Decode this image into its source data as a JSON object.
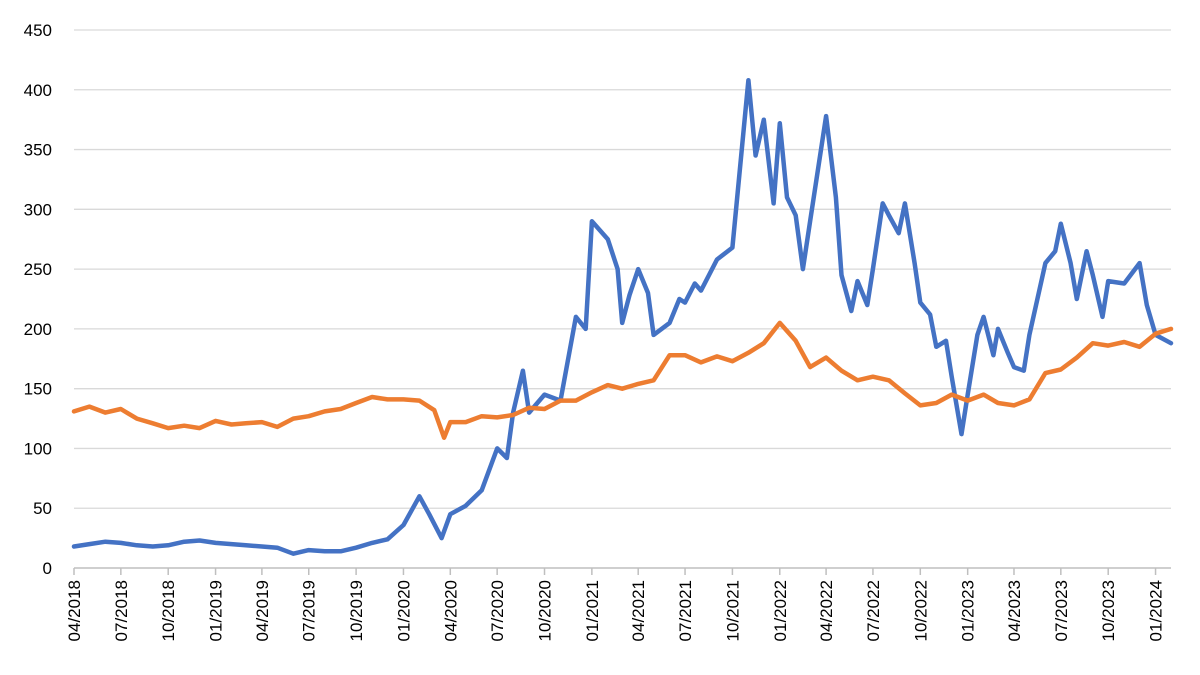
{
  "chart_data": {
    "type": "line",
    "title": "",
    "xlabel": "",
    "ylabel": "",
    "ylim": [
      0,
      450
    ],
    "yticks": [
      "0",
      "50",
      "100",
      "150",
      "200",
      "250",
      "300",
      "350",
      "400",
      "450"
    ],
    "xlim": [
      "2018-04-01",
      "2024-01-31"
    ],
    "xticks": [
      {
        "date": "2018-04-01",
        "label": "04/2018"
      },
      {
        "date": "2018-07-01",
        "label": "07/2018"
      },
      {
        "date": "2018-10-01",
        "label": "10/2018"
      },
      {
        "date": "2019-01-01",
        "label": "01/2019"
      },
      {
        "date": "2019-04-01",
        "label": "04/2019"
      },
      {
        "date": "2019-07-01",
        "label": "07/2019"
      },
      {
        "date": "2019-10-01",
        "label": "10/2019"
      },
      {
        "date": "2020-01-01",
        "label": "01/2020"
      },
      {
        "date": "2020-04-01",
        "label": "04/2020"
      },
      {
        "date": "2020-07-01",
        "label": "07/2020"
      },
      {
        "date": "2020-10-01",
        "label": "10/2020"
      },
      {
        "date": "2021-01-01",
        "label": "01/2021"
      },
      {
        "date": "2021-04-01",
        "label": "04/2021"
      },
      {
        "date": "2021-07-01",
        "label": "07/2021"
      },
      {
        "date": "2021-10-01",
        "label": "10/2021"
      },
      {
        "date": "2022-01-01",
        "label": "01/2022"
      },
      {
        "date": "2022-04-01",
        "label": "04/2022"
      },
      {
        "date": "2022-07-01",
        "label": "07/2022"
      },
      {
        "date": "2022-10-01",
        "label": "10/2022"
      },
      {
        "date": "2023-01-01",
        "label": "01/2023"
      },
      {
        "date": "2023-04-01",
        "label": "04/2023"
      },
      {
        "date": "2023-07-01",
        "label": "07/2023"
      },
      {
        "date": "2023-10-01",
        "label": "10/2023"
      },
      {
        "date": "2024-01-01",
        "label": "01/2024"
      }
    ],
    "grid": "horizontal",
    "legend": "none",
    "series": [
      {
        "color": "#4472C4",
        "points": [
          [
            "2018-04-01",
            18
          ],
          [
            "2018-05-01",
            20
          ],
          [
            "2018-06-01",
            22
          ],
          [
            "2018-07-01",
            21
          ],
          [
            "2018-08-01",
            19
          ],
          [
            "2018-09-01",
            18
          ],
          [
            "2018-10-01",
            19
          ],
          [
            "2018-11-01",
            22
          ],
          [
            "2018-12-01",
            23
          ],
          [
            "2019-01-01",
            21
          ],
          [
            "2019-02-01",
            20
          ],
          [
            "2019-03-01",
            19
          ],
          [
            "2019-04-01",
            18
          ],
          [
            "2019-05-01",
            17
          ],
          [
            "2019-06-01",
            12
          ],
          [
            "2019-07-01",
            15
          ],
          [
            "2019-08-01",
            14
          ],
          [
            "2019-09-01",
            14
          ],
          [
            "2019-10-01",
            17
          ],
          [
            "2019-11-01",
            21
          ],
          [
            "2019-12-01",
            24
          ],
          [
            "2020-01-01",
            36
          ],
          [
            "2020-02-01",
            60
          ],
          [
            "2020-02-20",
            45
          ],
          [
            "2020-03-15",
            25
          ],
          [
            "2020-04-01",
            45
          ],
          [
            "2020-05-01",
            52
          ],
          [
            "2020-06-01",
            65
          ],
          [
            "2020-07-01",
            100
          ],
          [
            "2020-07-20",
            92
          ],
          [
            "2020-08-01",
            130
          ],
          [
            "2020-08-20",
            165
          ],
          [
            "2020-09-01",
            130
          ],
          [
            "2020-10-01",
            145
          ],
          [
            "2020-11-01",
            140
          ],
          [
            "2020-12-01",
            210
          ],
          [
            "2020-12-20",
            200
          ],
          [
            "2021-01-01",
            290
          ],
          [
            "2021-02-01",
            275
          ],
          [
            "2021-02-20",
            250
          ],
          [
            "2021-03-01",
            205
          ],
          [
            "2021-03-15",
            228
          ],
          [
            "2021-04-01",
            250
          ],
          [
            "2021-04-20",
            230
          ],
          [
            "2021-05-01",
            195
          ],
          [
            "2021-06-01",
            205
          ],
          [
            "2021-06-20",
            225
          ],
          [
            "2021-07-01",
            222
          ],
          [
            "2021-07-20",
            238
          ],
          [
            "2021-08-01",
            232
          ],
          [
            "2021-09-01",
            258
          ],
          [
            "2021-10-01",
            268
          ],
          [
            "2021-11-01",
            408
          ],
          [
            "2021-11-15",
            345
          ],
          [
            "2021-12-01",
            375
          ],
          [
            "2021-12-20",
            305
          ],
          [
            "2022-01-01",
            372
          ],
          [
            "2022-01-15",
            310
          ],
          [
            "2022-02-01",
            295
          ],
          [
            "2022-02-15",
            250
          ],
          [
            "2022-03-01",
            290
          ],
          [
            "2022-04-01",
            378
          ],
          [
            "2022-04-20",
            310
          ],
          [
            "2022-05-01",
            245
          ],
          [
            "2022-05-20",
            215
          ],
          [
            "2022-06-01",
            240
          ],
          [
            "2022-06-20",
            220
          ],
          [
            "2022-07-01",
            250
          ],
          [
            "2022-07-20",
            305
          ],
          [
            "2022-08-01",
            295
          ],
          [
            "2022-08-20",
            280
          ],
          [
            "2022-09-01",
            305
          ],
          [
            "2022-09-20",
            255
          ],
          [
            "2022-10-01",
            222
          ],
          [
            "2022-10-20",
            212
          ],
          [
            "2022-11-01",
            185
          ],
          [
            "2022-11-20",
            190
          ],
          [
            "2022-12-01",
            160
          ],
          [
            "2022-12-20",
            112
          ],
          [
            "2023-01-01",
            145
          ],
          [
            "2023-01-20",
            195
          ],
          [
            "2023-02-01",
            210
          ],
          [
            "2023-02-20",
            178
          ],
          [
            "2023-03-01",
            200
          ],
          [
            "2023-03-20",
            180
          ],
          [
            "2023-04-01",
            168
          ],
          [
            "2023-04-20",
            165
          ],
          [
            "2023-05-01",
            195
          ],
          [
            "2023-06-01",
            255
          ],
          [
            "2023-06-20",
            265
          ],
          [
            "2023-07-01",
            288
          ],
          [
            "2023-07-20",
            255
          ],
          [
            "2023-08-01",
            225
          ],
          [
            "2023-08-20",
            265
          ],
          [
            "2023-09-01",
            245
          ],
          [
            "2023-09-20",
            210
          ],
          [
            "2023-10-01",
            240
          ],
          [
            "2023-11-01",
            238
          ],
          [
            "2023-12-01",
            255
          ],
          [
            "2023-12-15",
            220
          ],
          [
            "2024-01-01",
            195
          ],
          [
            "2024-01-31",
            188
          ]
        ]
      },
      {
        "color": "#ED7D31",
        "points": [
          [
            "2018-04-01",
            131
          ],
          [
            "2018-05-01",
            135
          ],
          [
            "2018-06-01",
            130
          ],
          [
            "2018-07-01",
            133
          ],
          [
            "2018-08-01",
            125
          ],
          [
            "2018-09-01",
            121
          ],
          [
            "2018-10-01",
            117
          ],
          [
            "2018-11-01",
            119
          ],
          [
            "2018-12-01",
            117
          ],
          [
            "2019-01-01",
            123
          ],
          [
            "2019-02-01",
            120
          ],
          [
            "2019-03-01",
            121
          ],
          [
            "2019-04-01",
            122
          ],
          [
            "2019-05-01",
            118
          ],
          [
            "2019-06-01",
            125
          ],
          [
            "2019-07-01",
            127
          ],
          [
            "2019-08-01",
            131
          ],
          [
            "2019-09-01",
            133
          ],
          [
            "2019-10-01",
            138
          ],
          [
            "2019-11-01",
            143
          ],
          [
            "2019-12-01",
            141
          ],
          [
            "2020-01-01",
            141
          ],
          [
            "2020-02-01",
            140
          ],
          [
            "2020-03-01",
            132
          ],
          [
            "2020-03-20",
            109
          ],
          [
            "2020-04-01",
            122
          ],
          [
            "2020-05-01",
            122
          ],
          [
            "2020-06-01",
            127
          ],
          [
            "2020-07-01",
            126
          ],
          [
            "2020-08-01",
            128
          ],
          [
            "2020-09-01",
            134
          ],
          [
            "2020-10-01",
            133
          ],
          [
            "2020-11-01",
            140
          ],
          [
            "2020-12-01",
            140
          ],
          [
            "2021-01-01",
            147
          ],
          [
            "2021-02-01",
            153
          ],
          [
            "2021-03-01",
            150
          ],
          [
            "2021-04-01",
            154
          ],
          [
            "2021-05-01",
            157
          ],
          [
            "2021-06-01",
            178
          ],
          [
            "2021-07-01",
            178
          ],
          [
            "2021-08-01",
            172
          ],
          [
            "2021-09-01",
            177
          ],
          [
            "2021-10-01",
            173
          ],
          [
            "2021-11-01",
            180
          ],
          [
            "2021-12-01",
            188
          ],
          [
            "2022-01-01",
            205
          ],
          [
            "2022-02-01",
            190
          ],
          [
            "2022-03-01",
            168
          ],
          [
            "2022-04-01",
            176
          ],
          [
            "2022-05-01",
            165
          ],
          [
            "2022-06-01",
            157
          ],
          [
            "2022-07-01",
            160
          ],
          [
            "2022-08-01",
            157
          ],
          [
            "2022-09-01",
            146
          ],
          [
            "2022-10-01",
            136
          ],
          [
            "2022-11-01",
            138
          ],
          [
            "2022-12-01",
            145
          ],
          [
            "2023-01-01",
            140
          ],
          [
            "2023-02-01",
            145
          ],
          [
            "2023-03-01",
            138
          ],
          [
            "2023-04-01",
            136
          ],
          [
            "2023-05-01",
            141
          ],
          [
            "2023-06-01",
            163
          ],
          [
            "2023-07-01",
            166
          ],
          [
            "2023-08-01",
            176
          ],
          [
            "2023-09-01",
            188
          ],
          [
            "2023-10-01",
            186
          ],
          [
            "2023-11-01",
            189
          ],
          [
            "2023-12-01",
            185
          ],
          [
            "2024-01-01",
            196
          ],
          [
            "2024-01-31",
            200
          ]
        ]
      }
    ]
  }
}
